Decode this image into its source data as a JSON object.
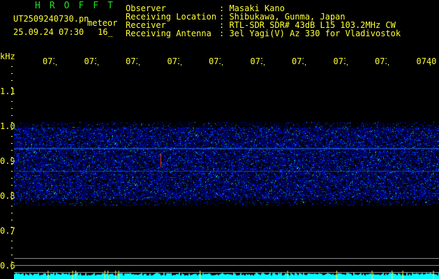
{
  "header": {
    "title": "HROFFT",
    "filename": "UT2509240730.pn",
    "mode": "meteor",
    "datetime": "25.09.24 07:30",
    "number": "16_",
    "fields": [
      {
        "label": "Observer",
        "value": "Masaki Kano"
      },
      {
        "label": "Receiving Location",
        "value": "Shibukawa, Gunma, Japan"
      },
      {
        "label": "Receiver",
        "value": "RTL-SDR SDR# 43dB L15 103.2MHz CW"
      },
      {
        "label": "Receiving Antenna",
        "value": "3el Yagi(V) Az 330 for Vladivostok"
      }
    ]
  },
  "axis": {
    "unit": "kHz",
    "y_labels": [
      "1.1",
      "1.0",
      "0.9",
      "0.8",
      "0.7",
      "0.6"
    ],
    "time_labels": [
      "0731",
      "0732",
      "0733",
      "0734",
      "0735",
      "0736",
      "0737",
      "0738",
      "0739",
      "0740"
    ]
  },
  "colors": {
    "text": "#ffff33",
    "title": "#22dd22",
    "signal": "#00ffff",
    "background": "#000000"
  }
}
